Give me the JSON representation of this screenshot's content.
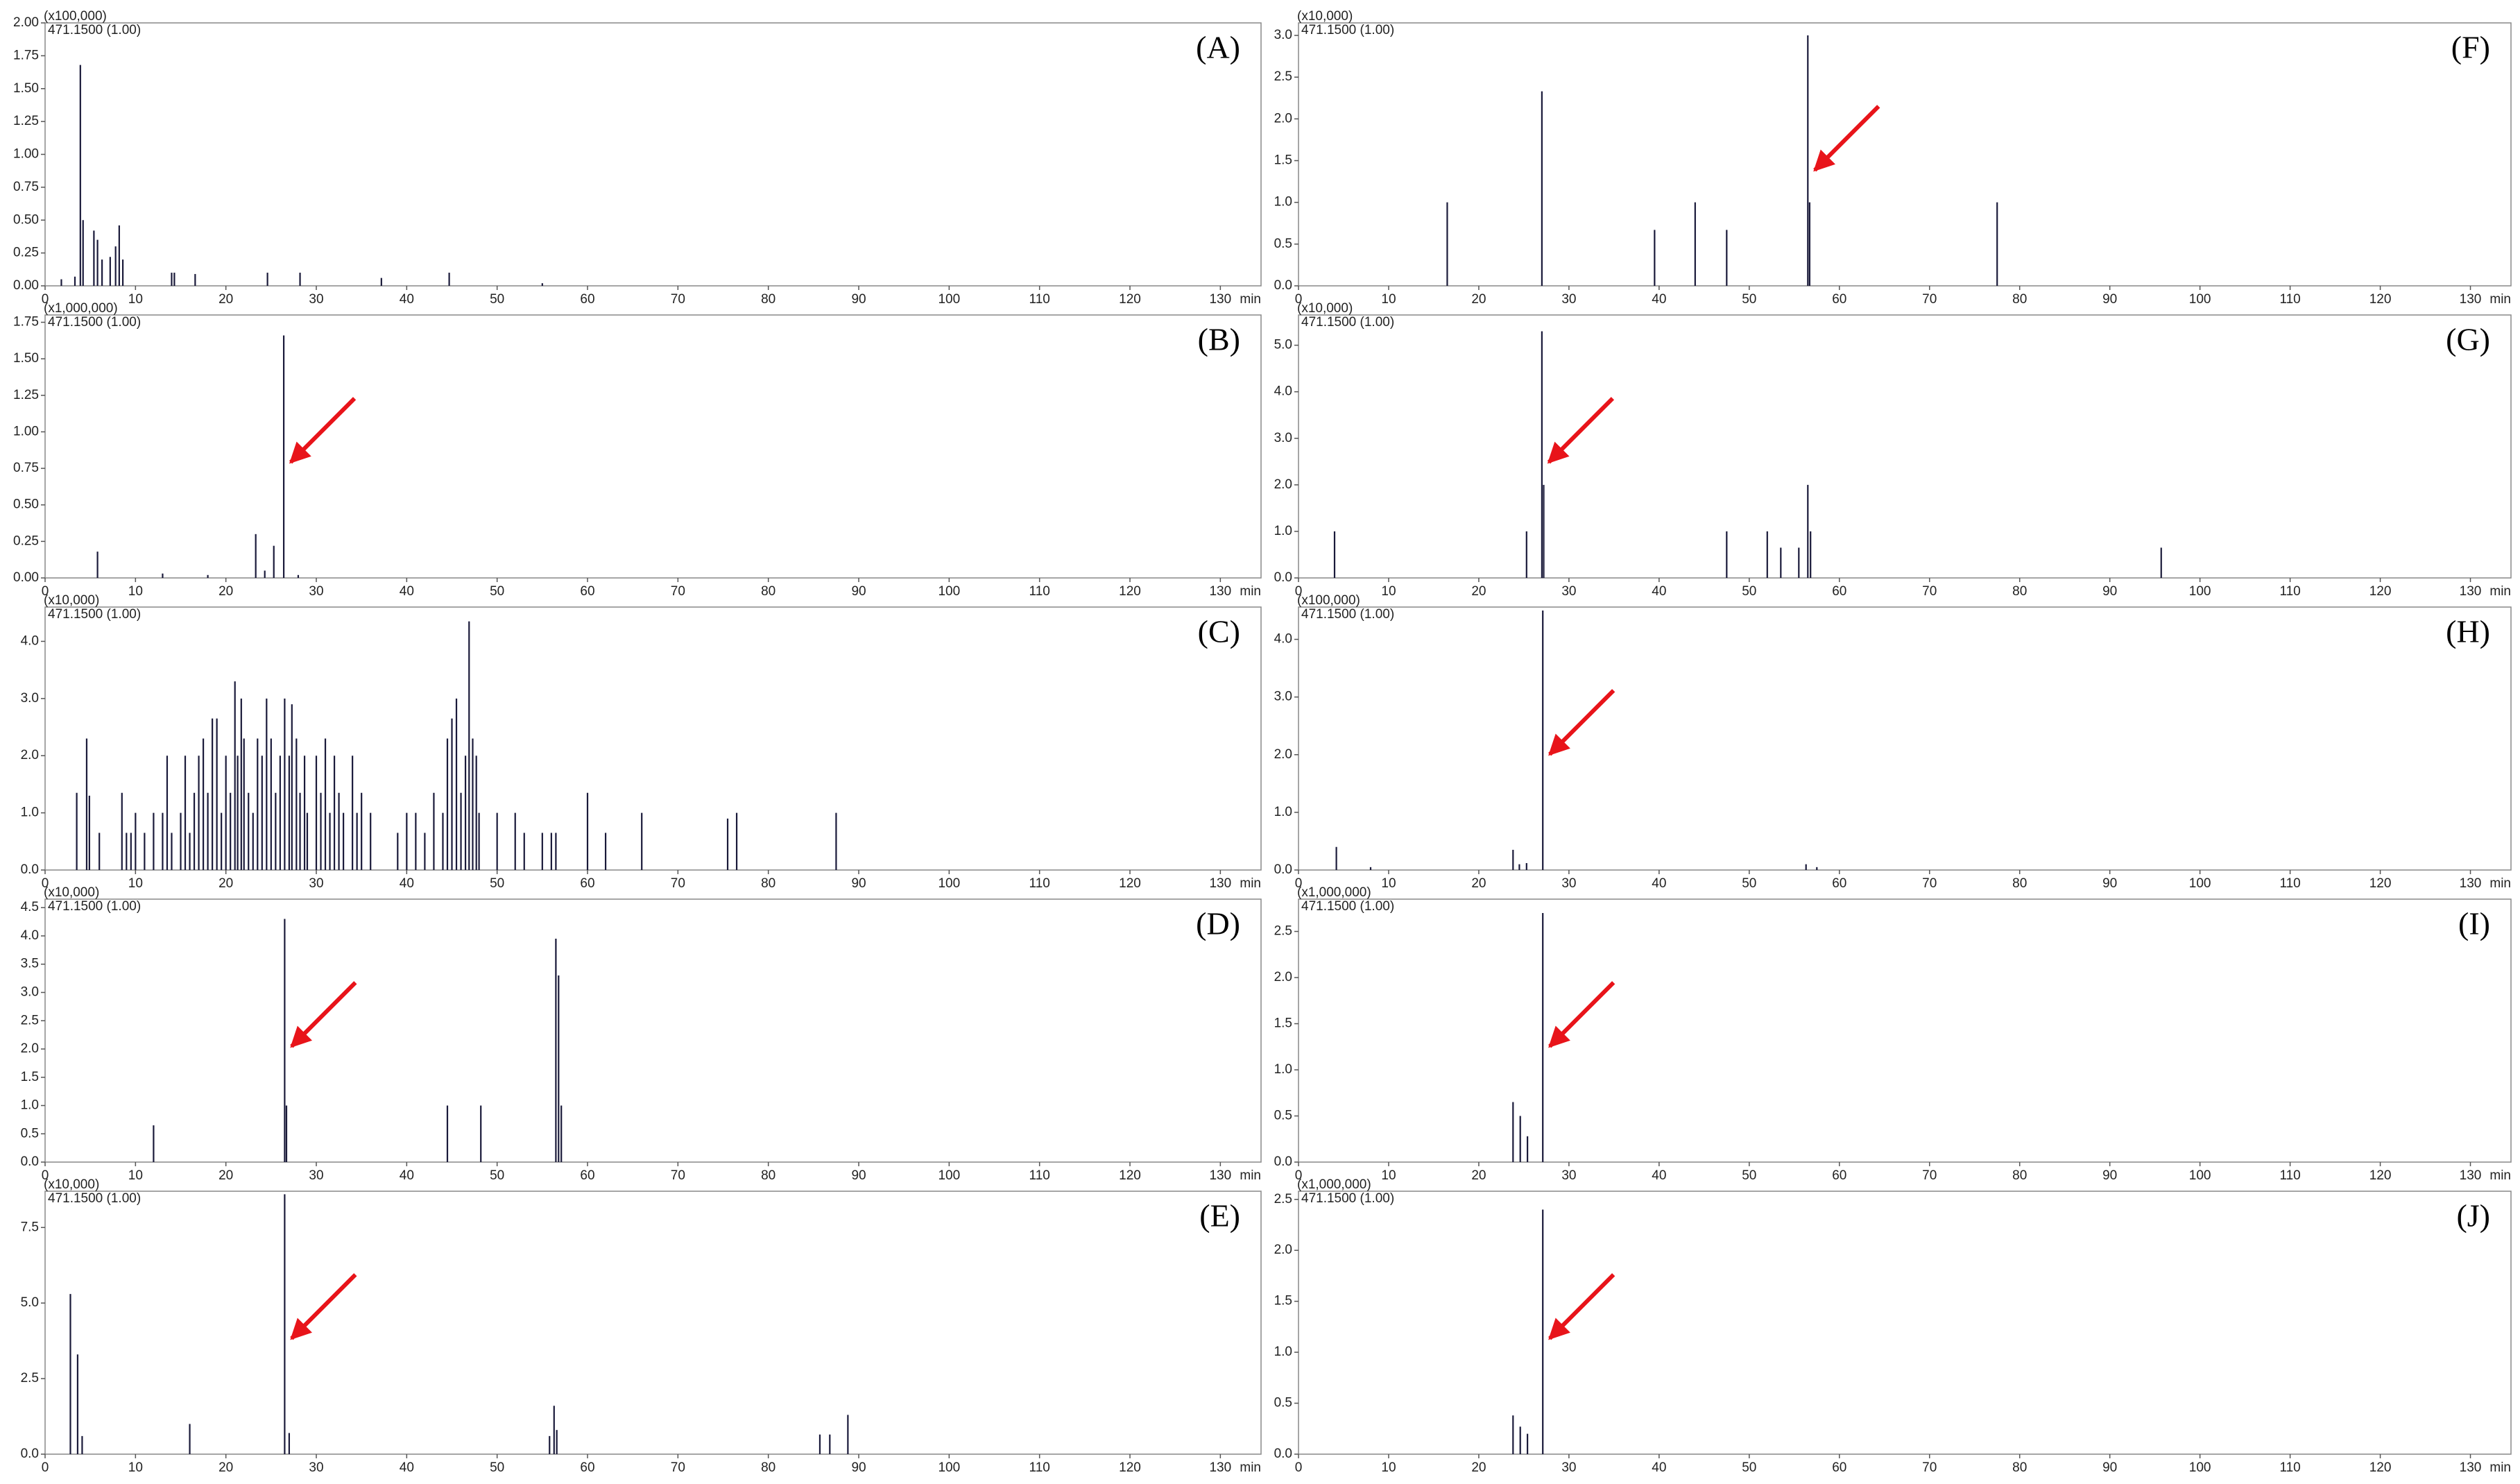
{
  "chart_data": [
    {
      "type": "stem",
      "label": "(A)",
      "scale_label": "(x100,000)",
      "trace_label": "471.1500 (1.00)",
      "x_unit": "min",
      "color": "#1a1a3a",
      "arrow": false,
      "x": [
        1.8,
        3.3,
        3.9,
        4.2,
        5.4,
        5.8,
        6.3,
        7.2,
        7.8,
        8.2,
        8.6,
        14.0,
        14.3,
        16.6,
        24.6,
        28.2,
        37.2,
        44.7,
        55.0
      ],
      "values": [
        0.05,
        0.07,
        1.68,
        0.5,
        0.42,
        0.35,
        0.2,
        0.22,
        0.3,
        0.46,
        0.2,
        0.1,
        0.1,
        0.09,
        0.1,
        0.1,
        0.06,
        0.1,
        0.02
      ],
      "xlim": [
        0,
        134.5
      ],
      "xticks": [
        0,
        10,
        20,
        30,
        40,
        50,
        60,
        70,
        80,
        90,
        100,
        110,
        120,
        130
      ],
      "ylim": [
        0,
        2.0
      ],
      "yticks": [
        {
          "value": 0,
          "label": "0.00"
        },
        {
          "value": 0.25,
          "label": "0.25"
        },
        {
          "value": 0.5,
          "label": "0.50"
        },
        {
          "value": 0.75,
          "label": "0.75"
        },
        {
          "value": 1,
          "label": "1.00"
        },
        {
          "value": 1.25,
          "label": "1.25"
        },
        {
          "value": 1.5,
          "label": "1.50"
        },
        {
          "value": 1.75,
          "label": "1.75"
        },
        {
          "value": 2,
          "label": "2.00"
        }
      ]
    },
    {
      "type": "stem",
      "label": "(B)",
      "scale_label": "(x1,000,000)",
      "trace_label": "471.1500 (1.00)",
      "x_unit": "min",
      "color": "#1a1a3a",
      "arrow": true,
      "x": [
        5.8,
        13.0,
        18.0,
        23.3,
        24.3,
        25.3,
        26.4,
        28.0
      ],
      "values": [
        0.18,
        0.03,
        0.02,
        0.3,
        0.05,
        0.22,
        1.66,
        0.02
      ],
      "xlim": [
        0,
        134.5
      ],
      "xticks": [
        0,
        10,
        20,
        30,
        40,
        50,
        60,
        70,
        80,
        90,
        100,
        110,
        120,
        130
      ],
      "ylim": [
        0,
        1.8
      ],
      "yticks": [
        {
          "value": 0,
          "label": "0.00"
        },
        {
          "value": 0.25,
          "label": "0.25"
        },
        {
          "value": 0.5,
          "label": "0.50"
        },
        {
          "value": 0.75,
          "label": "0.75"
        },
        {
          "value": 1,
          "label": "1.00"
        },
        {
          "value": 1.25,
          "label": "1.25"
        },
        {
          "value": 1.5,
          "label": "1.50"
        },
        {
          "value": 1.75,
          "label": "1.75"
        }
      ]
    },
    {
      "type": "stem",
      "label": "(C)",
      "scale_label": "(x10,000)",
      "trace_label": "471.1500 (1.00)",
      "x_unit": "min",
      "color": "#1a1a3a",
      "arrow": false,
      "x": [
        3.5,
        4.6,
        4.9,
        6,
        8.5,
        9,
        9.5,
        10,
        11,
        12,
        13,
        13.5,
        14,
        15,
        15.5,
        16,
        16.5,
        17,
        17.5,
        18,
        18.5,
        19,
        19.5,
        20,
        20.5,
        21,
        21.3,
        21.7,
        22,
        22.5,
        23,
        23.5,
        24,
        24.5,
        25,
        25.5,
        26,
        26.5,
        27,
        27.3,
        27.8,
        28.2,
        28.7,
        29,
        30,
        30.5,
        31,
        31.5,
        32,
        32.5,
        33,
        34,
        34.5,
        35,
        36,
        39,
        40,
        41,
        42,
        43,
        44,
        44.5,
        45,
        45.5,
        46,
        46.5,
        46.9,
        47.3,
        47.7,
        48,
        50,
        52,
        53,
        55,
        56,
        56.5,
        60,
        62,
        66,
        75.5,
        76.5,
        87.5
      ],
      "values": [
        1.35,
        2.3,
        1.3,
        0.65,
        1.35,
        0.65,
        0.65,
        1.0,
        0.65,
        1.0,
        1.0,
        2.0,
        0.65,
        1.0,
        2.0,
        0.65,
        1.35,
        2.0,
        2.3,
        1.35,
        2.65,
        2.65,
        1.0,
        2.0,
        1.35,
        3.3,
        2.0,
        3.0,
        2.3,
        1.35,
        1.0,
        2.3,
        2.0,
        3.0,
        2.3,
        1.35,
        2.0,
        3.0,
        2.0,
        2.9,
        2.3,
        1.35,
        2.0,
        1.0,
        2.0,
        1.35,
        2.3,
        1.0,
        2.0,
        1.35,
        1.0,
        2.0,
        1.0,
        1.35,
        1.0,
        0.65,
        1.0,
        1.0,
        0.65,
        1.35,
        1.0,
        2.3,
        2.65,
        3.0,
        1.35,
        2.0,
        4.35,
        2.3,
        2.0,
        1.0,
        1.0,
        1.0,
        0.65,
        0.65,
        0.65,
        0.65,
        1.35,
        0.65,
        1.0,
        0.9,
        1.0,
        1.0
      ],
      "xlim": [
        0,
        134.5
      ],
      "xticks": [
        0,
        10,
        20,
        30,
        40,
        50,
        60,
        70,
        80,
        90,
        100,
        110,
        120,
        130
      ],
      "ylim": [
        0,
        4.6
      ],
      "yticks": [
        {
          "value": 0,
          "label": "0.0"
        },
        {
          "value": 1,
          "label": "1.0"
        },
        {
          "value": 2,
          "label": "2.0"
        },
        {
          "value": 3,
          "label": "3.0"
        },
        {
          "value": 4,
          "label": "4.0"
        }
      ]
    },
    {
      "type": "stem",
      "label": "(D)",
      "scale_label": "(x10,000)",
      "trace_label": "471.1500 (1.00)",
      "x_unit": "min",
      "color": "#1a1a3a",
      "arrow": true,
      "x": [
        12,
        26.5,
        26.7,
        44.5,
        48.2,
        56.5,
        56.8,
        57.1
      ],
      "values": [
        0.65,
        4.3,
        1.0,
        1.0,
        1.0,
        3.95,
        3.3,
        1.0
      ],
      "xlim": [
        0,
        134.5
      ],
      "xticks": [
        0,
        10,
        20,
        30,
        40,
        50,
        60,
        70,
        80,
        90,
        100,
        110,
        120,
        130
      ],
      "ylim": [
        0,
        4.65
      ],
      "yticks": [
        {
          "value": 0,
          "label": "0.0"
        },
        {
          "value": 0.5,
          "label": "0.5"
        },
        {
          "value": 1,
          "label": "1.0"
        },
        {
          "value": 1.5,
          "label": "1.5"
        },
        {
          "value": 2,
          "label": "2.0"
        },
        {
          "value": 2.5,
          "label": "2.5"
        },
        {
          "value": 3,
          "label": "3.0"
        },
        {
          "value": 3.5,
          "label": "3.5"
        },
        {
          "value": 4,
          "label": "4.0"
        },
        {
          "value": 4.5,
          "label": "4.5"
        }
      ]
    },
    {
      "type": "stem",
      "label": "(E)",
      "scale_label": "(x10,000)",
      "trace_label": "471.1500 (1.00)",
      "x_unit": "min",
      "color": "#1a1a3a",
      "arrow": true,
      "x": [
        2.8,
        3.6,
        4.1,
        16,
        26.5,
        27,
        55.8,
        56.3,
        56.6,
        85.7,
        86.8,
        88.8
      ],
      "values": [
        5.3,
        3.3,
        0.6,
        1.0,
        8.6,
        0.7,
        0.6,
        1.6,
        0.8,
        0.65,
        0.65,
        1.3
      ],
      "xlim": [
        0,
        134.5
      ],
      "xticks": [
        0,
        10,
        20,
        30,
        40,
        50,
        60,
        70,
        80,
        90,
        100,
        110,
        120,
        130
      ],
      "ylim": [
        0,
        8.7
      ],
      "yticks": [
        {
          "value": 0,
          "label": "0.0"
        },
        {
          "value": 2.5,
          "label": "2.5"
        },
        {
          "value": 5,
          "label": "5.0"
        },
        {
          "value": 7.5,
          "label": "7.5"
        }
      ]
    },
    {
      "type": "stem",
      "label": "(F)",
      "scale_label": "(x10,000)",
      "trace_label": "471.1500 (1.00)",
      "x_unit": "min",
      "color": "#1a1a3a",
      "arrow": true,
      "x": [
        16.5,
        27,
        39.5,
        44,
        47.5,
        56.5,
        56.7,
        77.5
      ],
      "values": [
        1.0,
        2.33,
        0.67,
        1.0,
        0.67,
        3.0,
        1.0,
        1.0
      ],
      "xlim": [
        0,
        134.5
      ],
      "xticks": [
        0,
        10,
        20,
        30,
        40,
        50,
        60,
        70,
        80,
        90,
        100,
        110,
        120,
        130
      ],
      "ylim": [
        0,
        3.15
      ],
      "yticks": [
        {
          "value": 0,
          "label": "0.0"
        },
        {
          "value": 0.5,
          "label": "0.5"
        },
        {
          "value": 1,
          "label": "1.0"
        },
        {
          "value": 1.5,
          "label": "1.5"
        },
        {
          "value": 2,
          "label": "2.0"
        },
        {
          "value": 2.5,
          "label": "2.5"
        },
        {
          "value": 3,
          "label": "3.0"
        }
      ]
    },
    {
      "type": "stem",
      "label": "(G)",
      "scale_label": "(x10,000)",
      "trace_label": "471.1500 (1.00)",
      "x_unit": "min",
      "color": "#1a1a3a",
      "arrow": true,
      "x": [
        4,
        25.3,
        27,
        27.2,
        47.5,
        52,
        53.5,
        55.5,
        56.5,
        56.8,
        95.7
      ],
      "values": [
        1.0,
        1.0,
        5.3,
        2.0,
        1.0,
        1.0,
        0.65,
        0.65,
        2.0,
        1.0,
        0.65
      ],
      "xlim": [
        0,
        134.5
      ],
      "xticks": [
        0,
        10,
        20,
        30,
        40,
        50,
        60,
        70,
        80,
        90,
        100,
        110,
        120,
        130
      ],
      "ylim": [
        0,
        5.65
      ],
      "yticks": [
        {
          "value": 0,
          "label": "0.0"
        },
        {
          "value": 1,
          "label": "1.0"
        },
        {
          "value": 2,
          "label": "2.0"
        },
        {
          "value": 3,
          "label": "3.0"
        },
        {
          "value": 4,
          "label": "4.0"
        },
        {
          "value": 5,
          "label": "5.0"
        }
      ]
    },
    {
      "type": "stem",
      "label": "(H)",
      "scale_label": "(x100,000)",
      "trace_label": "471.1500 (1.00)",
      "x_unit": "min",
      "color": "#1a1a3a",
      "arrow": true,
      "x": [
        4.2,
        8,
        23.8,
        24.5,
        25.3,
        27.1,
        56.3,
        57.5
      ],
      "values": [
        0.4,
        0.05,
        0.35,
        0.1,
        0.12,
        4.5,
        0.1,
        0.05
      ],
      "xlim": [
        0,
        134.5
      ],
      "xticks": [
        0,
        10,
        20,
        30,
        40,
        50,
        60,
        70,
        80,
        90,
        100,
        110,
        120,
        130
      ],
      "ylim": [
        0,
        4.56
      ],
      "yticks": [
        {
          "value": 0,
          "label": "0.0"
        },
        {
          "value": 1,
          "label": "1.0"
        },
        {
          "value": 2,
          "label": "2.0"
        },
        {
          "value": 3,
          "label": "3.0"
        },
        {
          "value": 4,
          "label": "4.0"
        }
      ]
    },
    {
      "type": "stem",
      "label": "(I)",
      "scale_label": "(x1,000,000)",
      "trace_label": "471.1500 (1.00)",
      "x_unit": "min",
      "color": "#1a1a3a",
      "arrow": true,
      "x": [
        23.8,
        24.6,
        25.4,
        27.1
      ],
      "values": [
        0.65,
        0.5,
        0.28,
        2.7
      ],
      "xlim": [
        0,
        134.5
      ],
      "xticks": [
        0,
        10,
        20,
        30,
        40,
        50,
        60,
        70,
        80,
        90,
        100,
        110,
        120,
        130
      ],
      "ylim": [
        0,
        2.85
      ],
      "yticks": [
        {
          "value": 0,
          "label": "0.0"
        },
        {
          "value": 0.5,
          "label": "0.5"
        },
        {
          "value": 1,
          "label": "1.0"
        },
        {
          "value": 1.5,
          "label": "1.5"
        },
        {
          "value": 2,
          "label": "2.0"
        },
        {
          "value": 2.5,
          "label": "2.5"
        }
      ]
    },
    {
      "type": "stem",
      "label": "(J)",
      "scale_label": "(x1,000,000)",
      "trace_label": "471.1500 (1.00)",
      "x_unit": "min",
      "color": "#1a1a3a",
      "arrow": true,
      "x": [
        23.8,
        24.6,
        25.4,
        27.1
      ],
      "values": [
        0.38,
        0.27,
        0.2,
        2.4
      ],
      "xlim": [
        0,
        134.5
      ],
      "xticks": [
        0,
        10,
        20,
        30,
        40,
        50,
        60,
        70,
        80,
        90,
        100,
        110,
        120,
        130
      ],
      "ylim": [
        0,
        2.58
      ],
      "yticks": [
        {
          "value": 0,
          "label": "0.0"
        },
        {
          "value": 0.5,
          "label": "0.5"
        },
        {
          "value": 1,
          "label": "1.0"
        },
        {
          "value": 1.5,
          "label": "1.5"
        },
        {
          "value": 2,
          "label": "2.0"
        },
        {
          "value": 2.5,
          "label": "2.5"
        }
      ]
    }
  ]
}
